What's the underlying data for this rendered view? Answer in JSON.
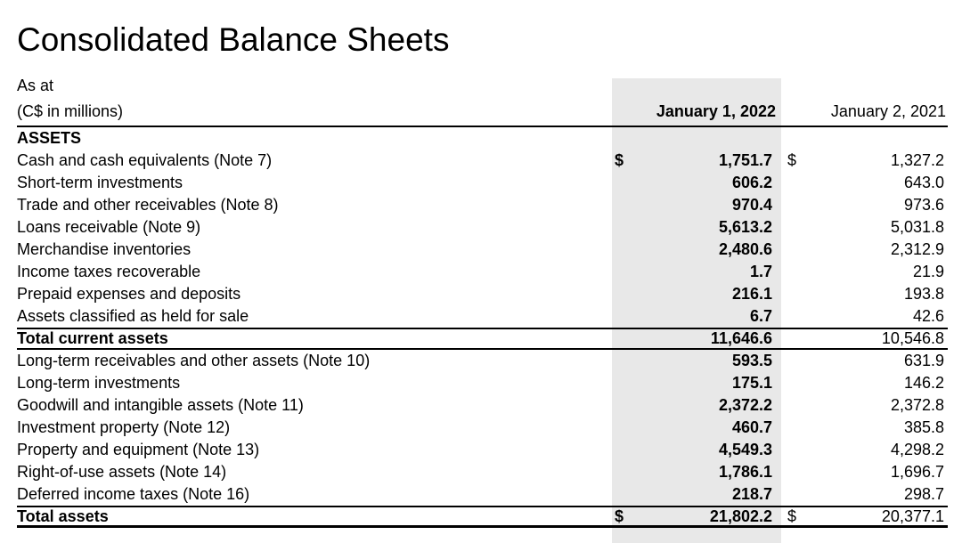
{
  "document": {
    "title": "Consolidated Balance Sheets",
    "as_at_label": "As at",
    "units_label": "(C$ in millions)"
  },
  "style": {
    "highlight_band_color": "#E8E8E8",
    "text_color": "#000000"
  },
  "table": {
    "currency_symbol": "$",
    "col_2022_header": "January 1, 2022",
    "col_2021_header": "January 2, 2021",
    "rows": [
      {
        "label": "ASSETS",
        "bold": true,
        "section": true,
        "v2022": "",
        "v2021": ""
      },
      {
        "label": "Cash and cash equivalents (Note 7)",
        "dollar": true,
        "v2022": "1,751.7",
        "v2021": "1,327.2"
      },
      {
        "label": "Short-term investments",
        "v2022": "606.2",
        "v2021": "643.0"
      },
      {
        "label": "Trade and other receivables (Note 8)",
        "v2022": "970.4",
        "v2021": "973.6"
      },
      {
        "label": "Loans receivable (Note 9)",
        "v2022": "5,613.2",
        "v2021": "5,031.8"
      },
      {
        "label": "Merchandise inventories",
        "v2022": "2,480.6",
        "v2021": "2,312.9"
      },
      {
        "label": "Income taxes recoverable",
        "v2022": "1.7",
        "v2021": "21.9"
      },
      {
        "label": "Prepaid expenses and deposits",
        "v2022": "216.1",
        "v2021": "193.8"
      },
      {
        "label": "Assets classified as held for sale",
        "v2022": "6.7",
        "v2021": "42.6"
      },
      {
        "label": "Total current assets",
        "bold": true,
        "total": "subtotal",
        "v2022": "11,646.6",
        "v2021": "10,546.8"
      },
      {
        "label": "Long-term receivables and other assets (Note 10)",
        "v2022": "593.5",
        "v2021": "631.9"
      },
      {
        "label": "Long-term investments",
        "v2022": "175.1",
        "v2021": "146.2"
      },
      {
        "label": "Goodwill and intangible assets (Note 11)",
        "v2022": "2,372.2",
        "v2021": "2,372.8"
      },
      {
        "label": "Investment property (Note 12)",
        "v2022": "460.7",
        "v2021": "385.8"
      },
      {
        "label": "Property and equipment (Note 13)",
        "v2022": "4,549.3",
        "v2021": "4,298.2"
      },
      {
        "label": "Right-of-use assets (Note 14)",
        "v2022": "1,786.1",
        "v2021": "1,696.7"
      },
      {
        "label": "Deferred income taxes (Note 16)",
        "v2022": "218.7",
        "v2021": "298.7"
      },
      {
        "label": "Total assets",
        "bold": true,
        "total": "grand",
        "dollar": true,
        "v2022": "21,802.2",
        "v2021": "20,377.1"
      }
    ]
  }
}
